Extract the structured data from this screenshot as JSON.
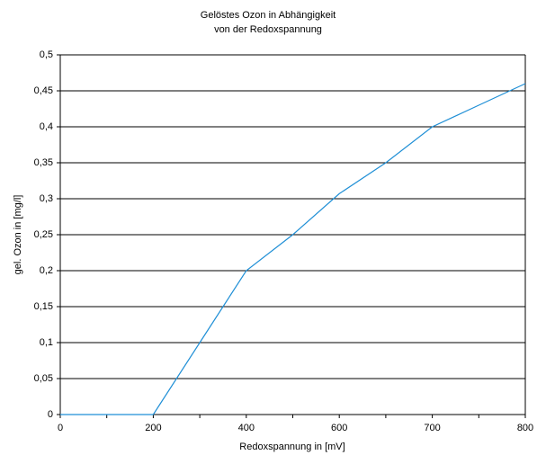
{
  "chart_data": {
    "type": "line",
    "title": [
      "Gelöstes Ozon in Abhängigkeit",
      "von der Redoxspannung"
    ],
    "x_label": "Redoxspannung in [mV]",
    "y_label": "gel. Ozon in [mg/l]",
    "categories": [
      "0",
      null,
      "200",
      null,
      "400",
      null,
      "600",
      null,
      "700",
      null,
      "800"
    ],
    "values": [
      0,
      0,
      0,
      0.1,
      0.2,
      0.25,
      0.307,
      0.35,
      0.4,
      0.43,
      0.46
    ],
    "color": "#1f8fd6",
    "ylim": [
      0,
      0.5
    ],
    "yticks": [
      0,
      {
        "value": 0.05,
        "label": "0,05"
      },
      {
        "value": 0.1,
        "label": "0,1"
      },
      {
        "value": 0.15,
        "label": "0,15"
      },
      {
        "value": 0.2,
        "label": "0,2"
      },
      {
        "value": 0.25,
        "label": "0,25"
      },
      {
        "value": 0.3,
        "label": "0,3"
      },
      {
        "value": 0.35,
        "label": "0,35"
      },
      {
        "value": 0.4,
        "label": "0,4"
      },
      {
        "value": 0.45,
        "label": "0,45"
      },
      {
        "value": 0.5,
        "label": "0,5"
      }
    ],
    "grid": true
  }
}
